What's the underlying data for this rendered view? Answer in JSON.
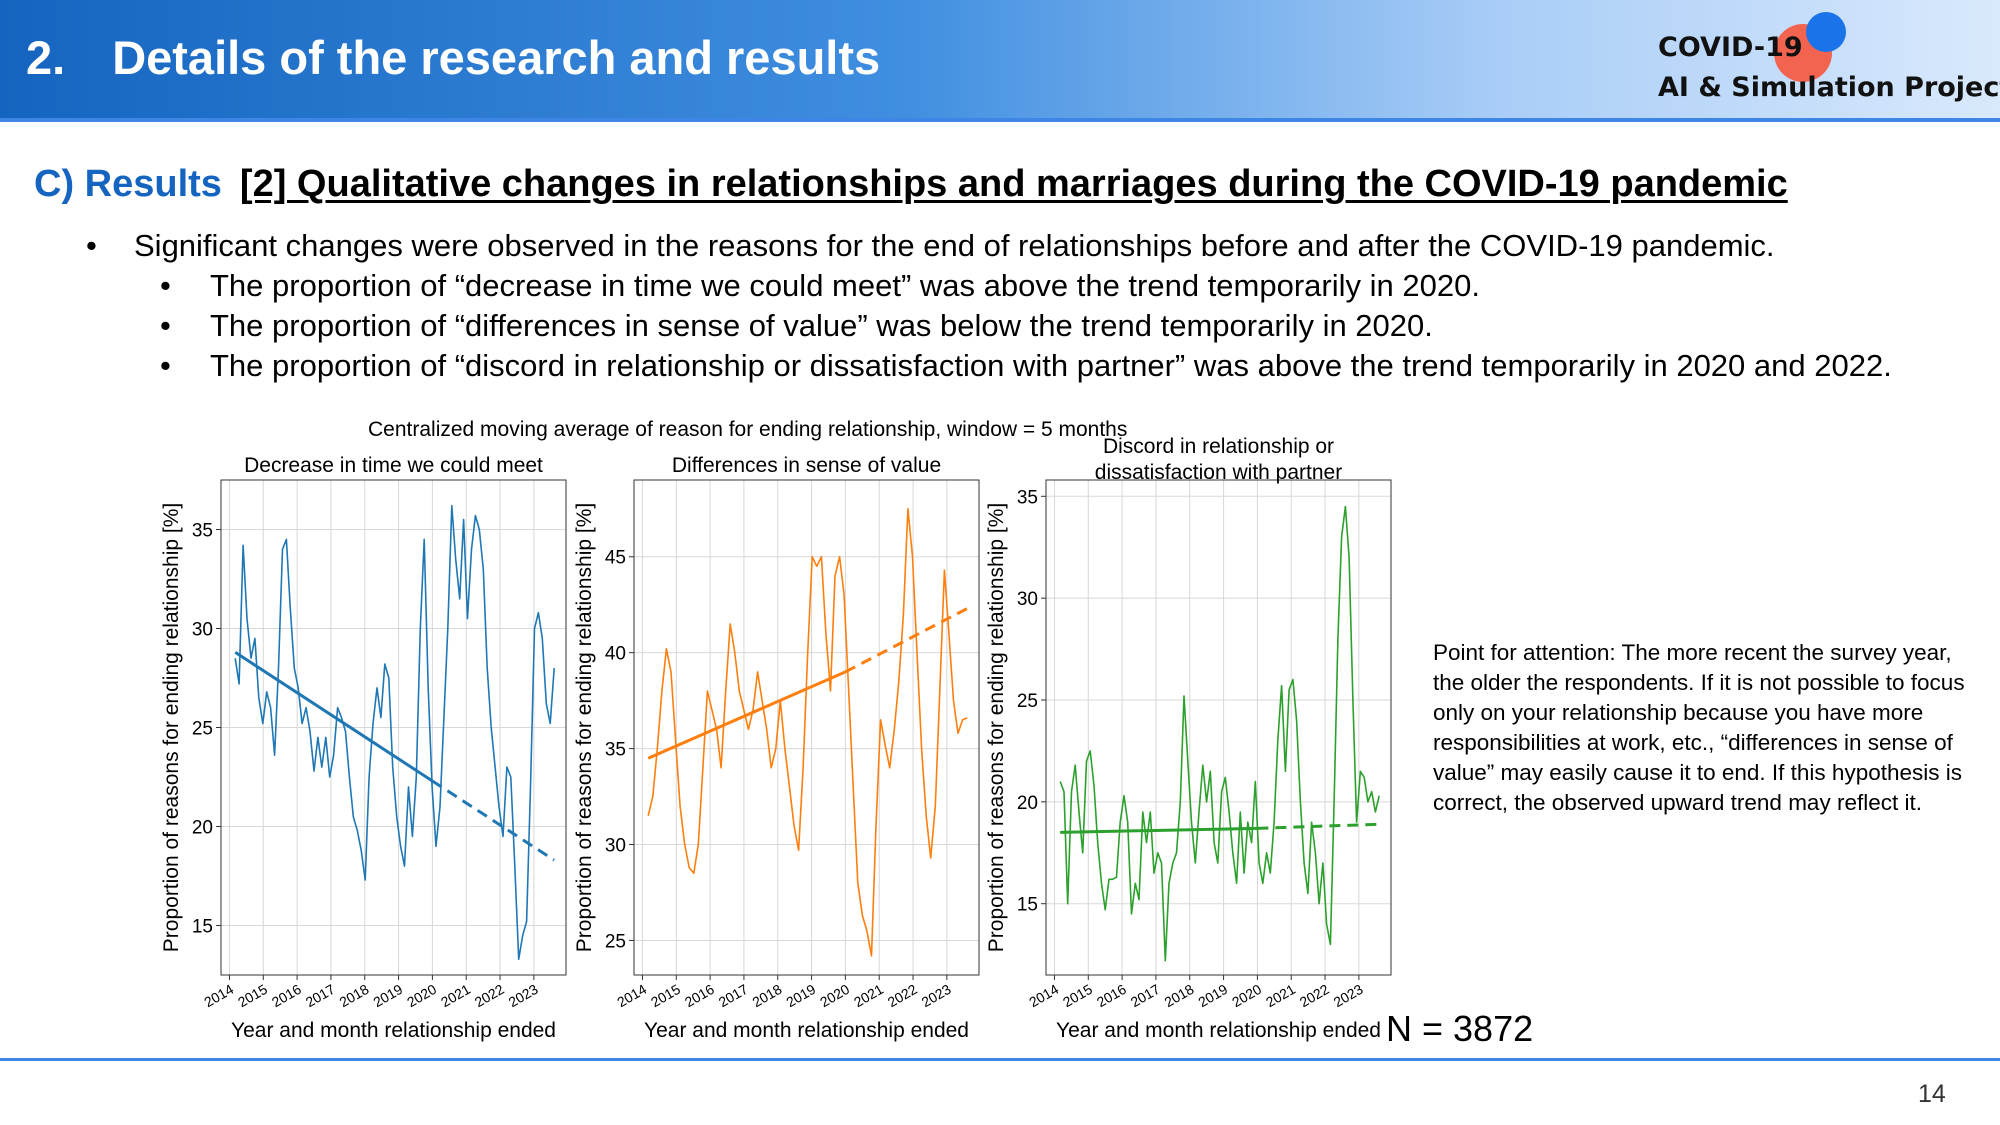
{
  "header": {
    "title": "2. Details of the research and results",
    "logo_line1": "COVID-19",
    "logo_line2": "AI & Simulation Project"
  },
  "section": {
    "lead": "C) Results",
    "title": "[2] Qualitative changes in relationships and marriages during the COVID-19 pandemic"
  },
  "bullets": {
    "main": "Significant changes were observed in the reasons for the end of relationships before and after the COVID-19 pandemic.",
    "sub": [
      "The proportion of “decrease in time we could meet” was above the trend temporarily in 2020.",
      "The proportion of “differences in sense of value” was below the trend temporarily in 2020.",
      "The proportion of “discord in relationship or dissatisfaction with partner” was above the trend temporarily in 2020 and 2022."
    ]
  },
  "figure": {
    "supertitle": "Centralized moving average of reason for ending relationship, window = 5 months",
    "n_label": "N = 3872"
  },
  "attention_note": "Point for attention: The more recent the survey year, the older the respondents. If it is not possible to focus only on your relationship because you have more responsibilities at work, etc., “differences in sense of value” may easily cause it to end. If this hypothesis is correct, the observed upward trend may reflect it.",
  "page_number": "14",
  "chart_data": [
    {
      "type": "line",
      "title": "Decrease in time we could meet",
      "xlabel": "Year and month relationship ended",
      "ylabel": "Proportion of reasons for ending relationship [%]",
      "xlim": [
        2013.75,
        2023.95
      ],
      "ylim": [
        12.5,
        37.5
      ],
      "yticks": [
        15,
        20,
        25,
        30,
        35
      ],
      "xticks": [
        2014,
        2015,
        2016,
        2017,
        2018,
        2019,
        2020,
        2021,
        2022,
        2023
      ],
      "color": "#1f77b4",
      "grid": true,
      "x_start": 2014.17,
      "x_end": 2023.6,
      "series": [
        {
          "values": [
            28.5,
            27.2,
            34.2,
            30.5,
            28.5,
            29.5,
            26.5,
            25.2,
            26.8,
            26,
            23.6,
            28,
            34,
            34.5,
            31,
            28,
            27,
            25.2,
            26,
            24.8,
            22.8,
            24.5,
            23,
            24.5,
            22.5,
            23.6,
            26,
            25.5,
            24.8,
            22.5,
            20.5,
            19.8,
            18.8,
            17.3,
            22.5,
            25.2,
            27,
            25.5,
            28.2,
            27.5,
            23,
            20.5,
            19,
            18,
            22,
            19.5,
            22.5,
            30,
            34.5,
            27,
            22,
            19,
            21,
            25.5,
            30,
            36.2,
            33.5,
            31.5,
            35.5,
            30.5,
            34,
            35.7,
            35,
            33,
            28,
            25,
            23,
            21,
            19.5,
            23,
            22.5,
            18,
            13.3,
            14.5,
            15.2,
            22,
            30,
            30.8,
            29.5,
            26.2,
            25.2,
            28
          ]
        },
        {
          "name": "",
          "kind": "trend-fitted",
          "x": [
            2014.17,
            2020.0
          ],
          "values": [
            28.8,
            22.3
          ]
        },
        {
          "name": "",
          "kind": "trend-extrapolated",
          "x": [
            2020.0,
            2023.6
          ],
          "values": [
            22.3,
            18.3
          ]
        }
      ]
    },
    {
      "type": "line",
      "title": "Differences in sense of value",
      "xlabel": "Year and month relationship ended",
      "ylabel": "Proportion of reasons for ending relationship [%]",
      "xlim": [
        2013.75,
        2023.95
      ],
      "ylim": [
        23.2,
        49.0
      ],
      "yticks": [
        25,
        30,
        35,
        40,
        45
      ],
      "xticks": [
        2014,
        2015,
        2016,
        2017,
        2018,
        2019,
        2020,
        2021,
        2022,
        2023
      ],
      "color": "#ff7f0e",
      "grid": true,
      "x_start": 2014.17,
      "x_end": 2023.6,
      "series": [
        {
          "values": [
            31.5,
            32.5,
            35,
            38,
            40.2,
            39,
            35.5,
            32,
            30,
            28.8,
            28.5,
            30,
            34,
            38,
            37,
            36,
            34,
            38,
            41.5,
            40,
            38,
            37,
            36,
            37,
            39,
            37.5,
            36,
            34,
            35,
            37.5,
            35,
            33,
            31,
            29.7,
            34,
            40,
            45,
            44.5,
            45,
            41,
            38,
            44,
            45,
            43,
            38,
            33,
            28,
            26.3,
            25.5,
            24.2,
            31,
            36.5,
            35.2,
            34,
            36,
            38.5,
            42,
            47.5,
            45,
            40,
            35,
            31.5,
            29.3,
            32,
            38,
            44.3,
            41,
            37.5,
            35.8,
            36.5,
            36.6
          ]
        },
        {
          "name": "",
          "kind": "trend-fitted",
          "x": [
            2014.17,
            2020.0
          ],
          "values": [
            34.5,
            39.0
          ]
        },
        {
          "name": "",
          "kind": "trend-extrapolated",
          "x": [
            2020.0,
            2023.6
          ],
          "values": [
            39.0,
            42.3
          ]
        }
      ]
    },
    {
      "type": "line",
      "title": "Discord in relationship or dissatisfaction with partner",
      "xlabel": "Year and month relationship ended",
      "ylabel": "Proportion of reasons for ending relationship [%]",
      "xlim": [
        2013.75,
        2023.95
      ],
      "ylim": [
        11.5,
        35.8
      ],
      "yticks": [
        15,
        20,
        25,
        30,
        35
      ],
      "xticks": [
        2014,
        2015,
        2016,
        2017,
        2018,
        2019,
        2020,
        2021,
        2022,
        2023
      ],
      "color": "#2ca02c",
      "grid": true,
      "x_start": 2014.17,
      "x_end": 2023.6,
      "series": [
        {
          "values": [
            21,
            20.5,
            15,
            20.5,
            21.8,
            19.5,
            17.5,
            22,
            22.5,
            20.8,
            18,
            16,
            14.7,
            16.2,
            16.2,
            16.3,
            19,
            20.3,
            19,
            14.5,
            16,
            15.2,
            19.5,
            18,
            19.5,
            16.5,
            17.5,
            17,
            12.2,
            16,
            17,
            17.5,
            20,
            25.2,
            22,
            19,
            17,
            19.5,
            21.8,
            20,
            21.5,
            18,
            17,
            20.5,
            21.2,
            19.5,
            17.5,
            16,
            19.5,
            16.5,
            19,
            18,
            21,
            17,
            16,
            17.5,
            16.5,
            19,
            23,
            25.7,
            21.5,
            25.5,
            26,
            24,
            20,
            17,
            15.5,
            19,
            17.5,
            15,
            17,
            14,
            13,
            20,
            28,
            33,
            34.5,
            32,
            25,
            19,
            21.5,
            21.2,
            20,
            20.5,
            19.5,
            20.3
          ]
        },
        {
          "name": "",
          "kind": "trend-fitted",
          "x": [
            2014.17,
            2020.0
          ],
          "values": [
            18.5,
            18.7
          ]
        },
        {
          "name": "",
          "kind": "trend-extrapolated",
          "x": [
            2020.0,
            2023.6
          ],
          "values": [
            18.7,
            18.9
          ]
        }
      ]
    }
  ]
}
